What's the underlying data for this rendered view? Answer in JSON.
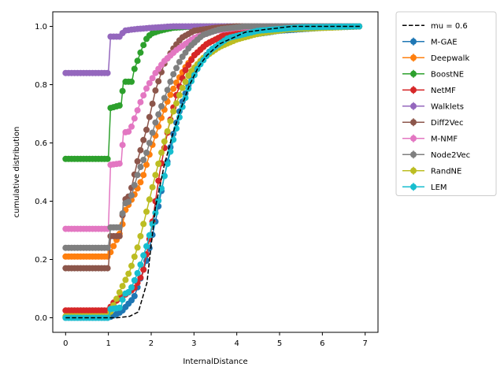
{
  "chart_data": {
    "type": "line",
    "title": "",
    "xlabel": "InternalDistance",
    "ylabel": "cumulative distribution",
    "xlim": [
      -0.3,
      7.3
    ],
    "ylim": [
      -0.05,
      1.05
    ],
    "x_ticks": [
      0,
      1,
      2,
      3,
      4,
      5,
      6,
      7
    ],
    "y_ticks": [
      0.0,
      0.2,
      0.4,
      0.6,
      0.8,
      1.0
    ],
    "x_tick_labels": [
      "0",
      "1",
      "2",
      "3",
      "4",
      "5",
      "6",
      "7"
    ],
    "y_tick_labels": [
      "0.0",
      "0.2",
      "0.4",
      "0.6",
      "0.8",
      "1.0"
    ],
    "grid": false,
    "legend_position": "outside-right",
    "reference": {
      "name": "mu = 0.6",
      "color": "#000000",
      "style": "dashed",
      "points": [
        [
          0,
          0.0
        ],
        [
          1.2,
          0.0
        ],
        [
          1.5,
          0.005
        ],
        [
          1.7,
          0.02
        ],
        [
          1.9,
          0.12
        ],
        [
          2.1,
          0.38
        ],
        [
          2.3,
          0.52
        ],
        [
          2.5,
          0.63
        ],
        [
          2.7,
          0.72
        ],
        [
          2.9,
          0.8
        ],
        [
          3.1,
          0.86
        ],
        [
          3.3,
          0.9
        ],
        [
          3.6,
          0.94
        ],
        [
          3.9,
          0.96
        ],
        [
          4.2,
          0.98
        ],
        [
          4.7,
          0.99
        ],
        [
          5.3,
          1.0
        ],
        [
          6.9,
          1.0
        ]
      ]
    },
    "series": [
      {
        "name": "M-GAE",
        "color": "#1f77b4",
        "points": [
          [
            0,
            0.0
          ],
          [
            1.0,
            0.0
          ],
          [
            1.3,
            0.02
          ],
          [
            1.6,
            0.07
          ],
          [
            1.9,
            0.2
          ],
          [
            2.1,
            0.33
          ],
          [
            2.3,
            0.48
          ],
          [
            2.5,
            0.62
          ],
          [
            2.7,
            0.73
          ],
          [
            2.9,
            0.81
          ],
          [
            3.1,
            0.87
          ],
          [
            3.4,
            0.92
          ],
          [
            3.8,
            0.95
          ],
          [
            4.3,
            0.97
          ],
          [
            5.0,
            0.985
          ],
          [
            6.0,
            0.995
          ],
          [
            6.9,
            1.0
          ]
        ]
      },
      {
        "name": "Deepwalk",
        "color": "#ff7f0e",
        "points": [
          [
            0,
            0.21
          ],
          [
            1.0,
            0.21
          ],
          [
            1.3,
            0.3
          ],
          [
            1.4,
            0.37
          ],
          [
            1.6,
            0.42
          ],
          [
            1.8,
            0.48
          ],
          [
            2.0,
            0.58
          ],
          [
            2.2,
            0.67
          ],
          [
            2.4,
            0.75
          ],
          [
            2.6,
            0.81
          ],
          [
            2.8,
            0.86
          ],
          [
            3.0,
            0.9
          ],
          [
            3.3,
            0.94
          ],
          [
            3.7,
            0.97
          ],
          [
            4.2,
            0.985
          ],
          [
            5.0,
            0.995
          ],
          [
            6.9,
            1.0
          ]
        ]
      },
      {
        "name": "BoostNE",
        "color": "#2ca02c",
        "points": [
          [
            0,
            0.545
          ],
          [
            1.0,
            0.545
          ],
          [
            1.05,
            0.72
          ],
          [
            1.3,
            0.73
          ],
          [
            1.35,
            0.81
          ],
          [
            1.55,
            0.81
          ],
          [
            1.6,
            0.85
          ],
          [
            1.7,
            0.89
          ],
          [
            1.8,
            0.93
          ],
          [
            1.9,
            0.96
          ],
          [
            2.0,
            0.975
          ],
          [
            2.2,
            0.985
          ],
          [
            2.5,
            0.995
          ],
          [
            3.0,
            1.0
          ],
          [
            6.9,
            1.0
          ]
        ]
      },
      {
        "name": "NetMF",
        "color": "#d62728",
        "points": [
          [
            0,
            0.025
          ],
          [
            1.0,
            0.025
          ],
          [
            1.1,
            0.05
          ],
          [
            1.3,
            0.07
          ],
          [
            1.6,
            0.1
          ],
          [
            1.8,
            0.15
          ],
          [
            2.0,
            0.3
          ],
          [
            2.2,
            0.5
          ],
          [
            2.4,
            0.65
          ],
          [
            2.6,
            0.77
          ],
          [
            2.8,
            0.85
          ],
          [
            3.0,
            0.9
          ],
          [
            3.3,
            0.94
          ],
          [
            3.7,
            0.97
          ],
          [
            4.2,
            0.985
          ],
          [
            5.0,
            0.995
          ],
          [
            6.9,
            1.0
          ]
        ]
      },
      {
        "name": "Walklets",
        "color": "#9467bd",
        "points": [
          [
            0,
            0.84
          ],
          [
            1.0,
            0.84
          ],
          [
            1.05,
            0.965
          ],
          [
            1.3,
            0.965
          ],
          [
            1.35,
            0.985
          ],
          [
            1.6,
            0.99
          ],
          [
            2.0,
            0.995
          ],
          [
            2.5,
            1.0
          ],
          [
            6.9,
            1.0
          ]
        ]
      },
      {
        "name": "Diff2Vec",
        "color": "#8c564b",
        "points": [
          [
            0,
            0.17
          ],
          [
            1.0,
            0.17
          ],
          [
            1.05,
            0.28
          ],
          [
            1.3,
            0.28
          ],
          [
            1.35,
            0.4
          ],
          [
            1.5,
            0.42
          ],
          [
            1.7,
            0.55
          ],
          [
            1.9,
            0.65
          ],
          [
            2.1,
            0.78
          ],
          [
            2.3,
            0.87
          ],
          [
            2.5,
            0.92
          ],
          [
            2.7,
            0.96
          ],
          [
            3.0,
            0.985
          ],
          [
            3.5,
            0.995
          ],
          [
            4.0,
            1.0
          ],
          [
            6.9,
            1.0
          ]
        ]
      },
      {
        "name": "M-NMF",
        "color": "#e377c2",
        "points": [
          [
            0,
            0.305
          ],
          [
            1.0,
            0.305
          ],
          [
            1.05,
            0.525
          ],
          [
            1.3,
            0.53
          ],
          [
            1.35,
            0.635
          ],
          [
            1.5,
            0.64
          ],
          [
            1.6,
            0.68
          ],
          [
            1.75,
            0.74
          ],
          [
            1.9,
            0.79
          ],
          [
            2.1,
            0.84
          ],
          [
            2.3,
            0.88
          ],
          [
            2.6,
            0.92
          ],
          [
            3.0,
            0.96
          ],
          [
            3.5,
            0.985
          ],
          [
            4.0,
            0.995
          ],
          [
            4.5,
            1.0
          ],
          [
            6.9,
            1.0
          ]
        ]
      },
      {
        "name": "Node2Vec",
        "color": "#7f7f7f",
        "points": [
          [
            0,
            0.24
          ],
          [
            1.0,
            0.24
          ],
          [
            1.05,
            0.31
          ],
          [
            1.3,
            0.31
          ],
          [
            1.35,
            0.39
          ],
          [
            1.5,
            0.4
          ],
          [
            1.7,
            0.5
          ],
          [
            1.9,
            0.57
          ],
          [
            2.1,
            0.67
          ],
          [
            2.3,
            0.75
          ],
          [
            2.5,
            0.83
          ],
          [
            2.7,
            0.89
          ],
          [
            2.9,
            0.93
          ],
          [
            3.2,
            0.97
          ],
          [
            3.6,
            0.99
          ],
          [
            4.2,
            1.0
          ],
          [
            6.9,
            1.0
          ]
        ]
      },
      {
        "name": "RandNE",
        "color": "#bcbd22",
        "points": [
          [
            0,
            0.005
          ],
          [
            1.0,
            0.005
          ],
          [
            1.3,
            0.1
          ],
          [
            1.5,
            0.16
          ],
          [
            1.7,
            0.25
          ],
          [
            1.9,
            0.37
          ],
          [
            2.1,
            0.49
          ],
          [
            2.3,
            0.6
          ],
          [
            2.5,
            0.7
          ],
          [
            2.7,
            0.78
          ],
          [
            2.9,
            0.84
          ],
          [
            3.2,
            0.89
          ],
          [
            3.6,
            0.93
          ],
          [
            4.0,
            0.955
          ],
          [
            4.5,
            0.975
          ],
          [
            5.2,
            0.99
          ],
          [
            6.9,
            1.0
          ]
        ]
      },
      {
        "name": "LEM",
        "color": "#17becf",
        "points": [
          [
            0,
            0.0
          ],
          [
            1.0,
            0.0
          ],
          [
            1.05,
            0.03
          ],
          [
            1.3,
            0.035
          ],
          [
            1.35,
            0.08
          ],
          [
            1.5,
            0.09
          ],
          [
            1.7,
            0.16
          ],
          [
            1.9,
            0.25
          ],
          [
            2.1,
            0.36
          ],
          [
            2.3,
            0.48
          ],
          [
            2.5,
            0.6
          ],
          [
            2.7,
            0.71
          ],
          [
            2.9,
            0.8
          ],
          [
            3.1,
            0.86
          ],
          [
            3.4,
            0.92
          ],
          [
            3.8,
            0.96
          ],
          [
            4.5,
            0.985
          ],
          [
            5.5,
            0.997
          ],
          [
            6.9,
            1.0
          ]
        ]
      }
    ]
  }
}
